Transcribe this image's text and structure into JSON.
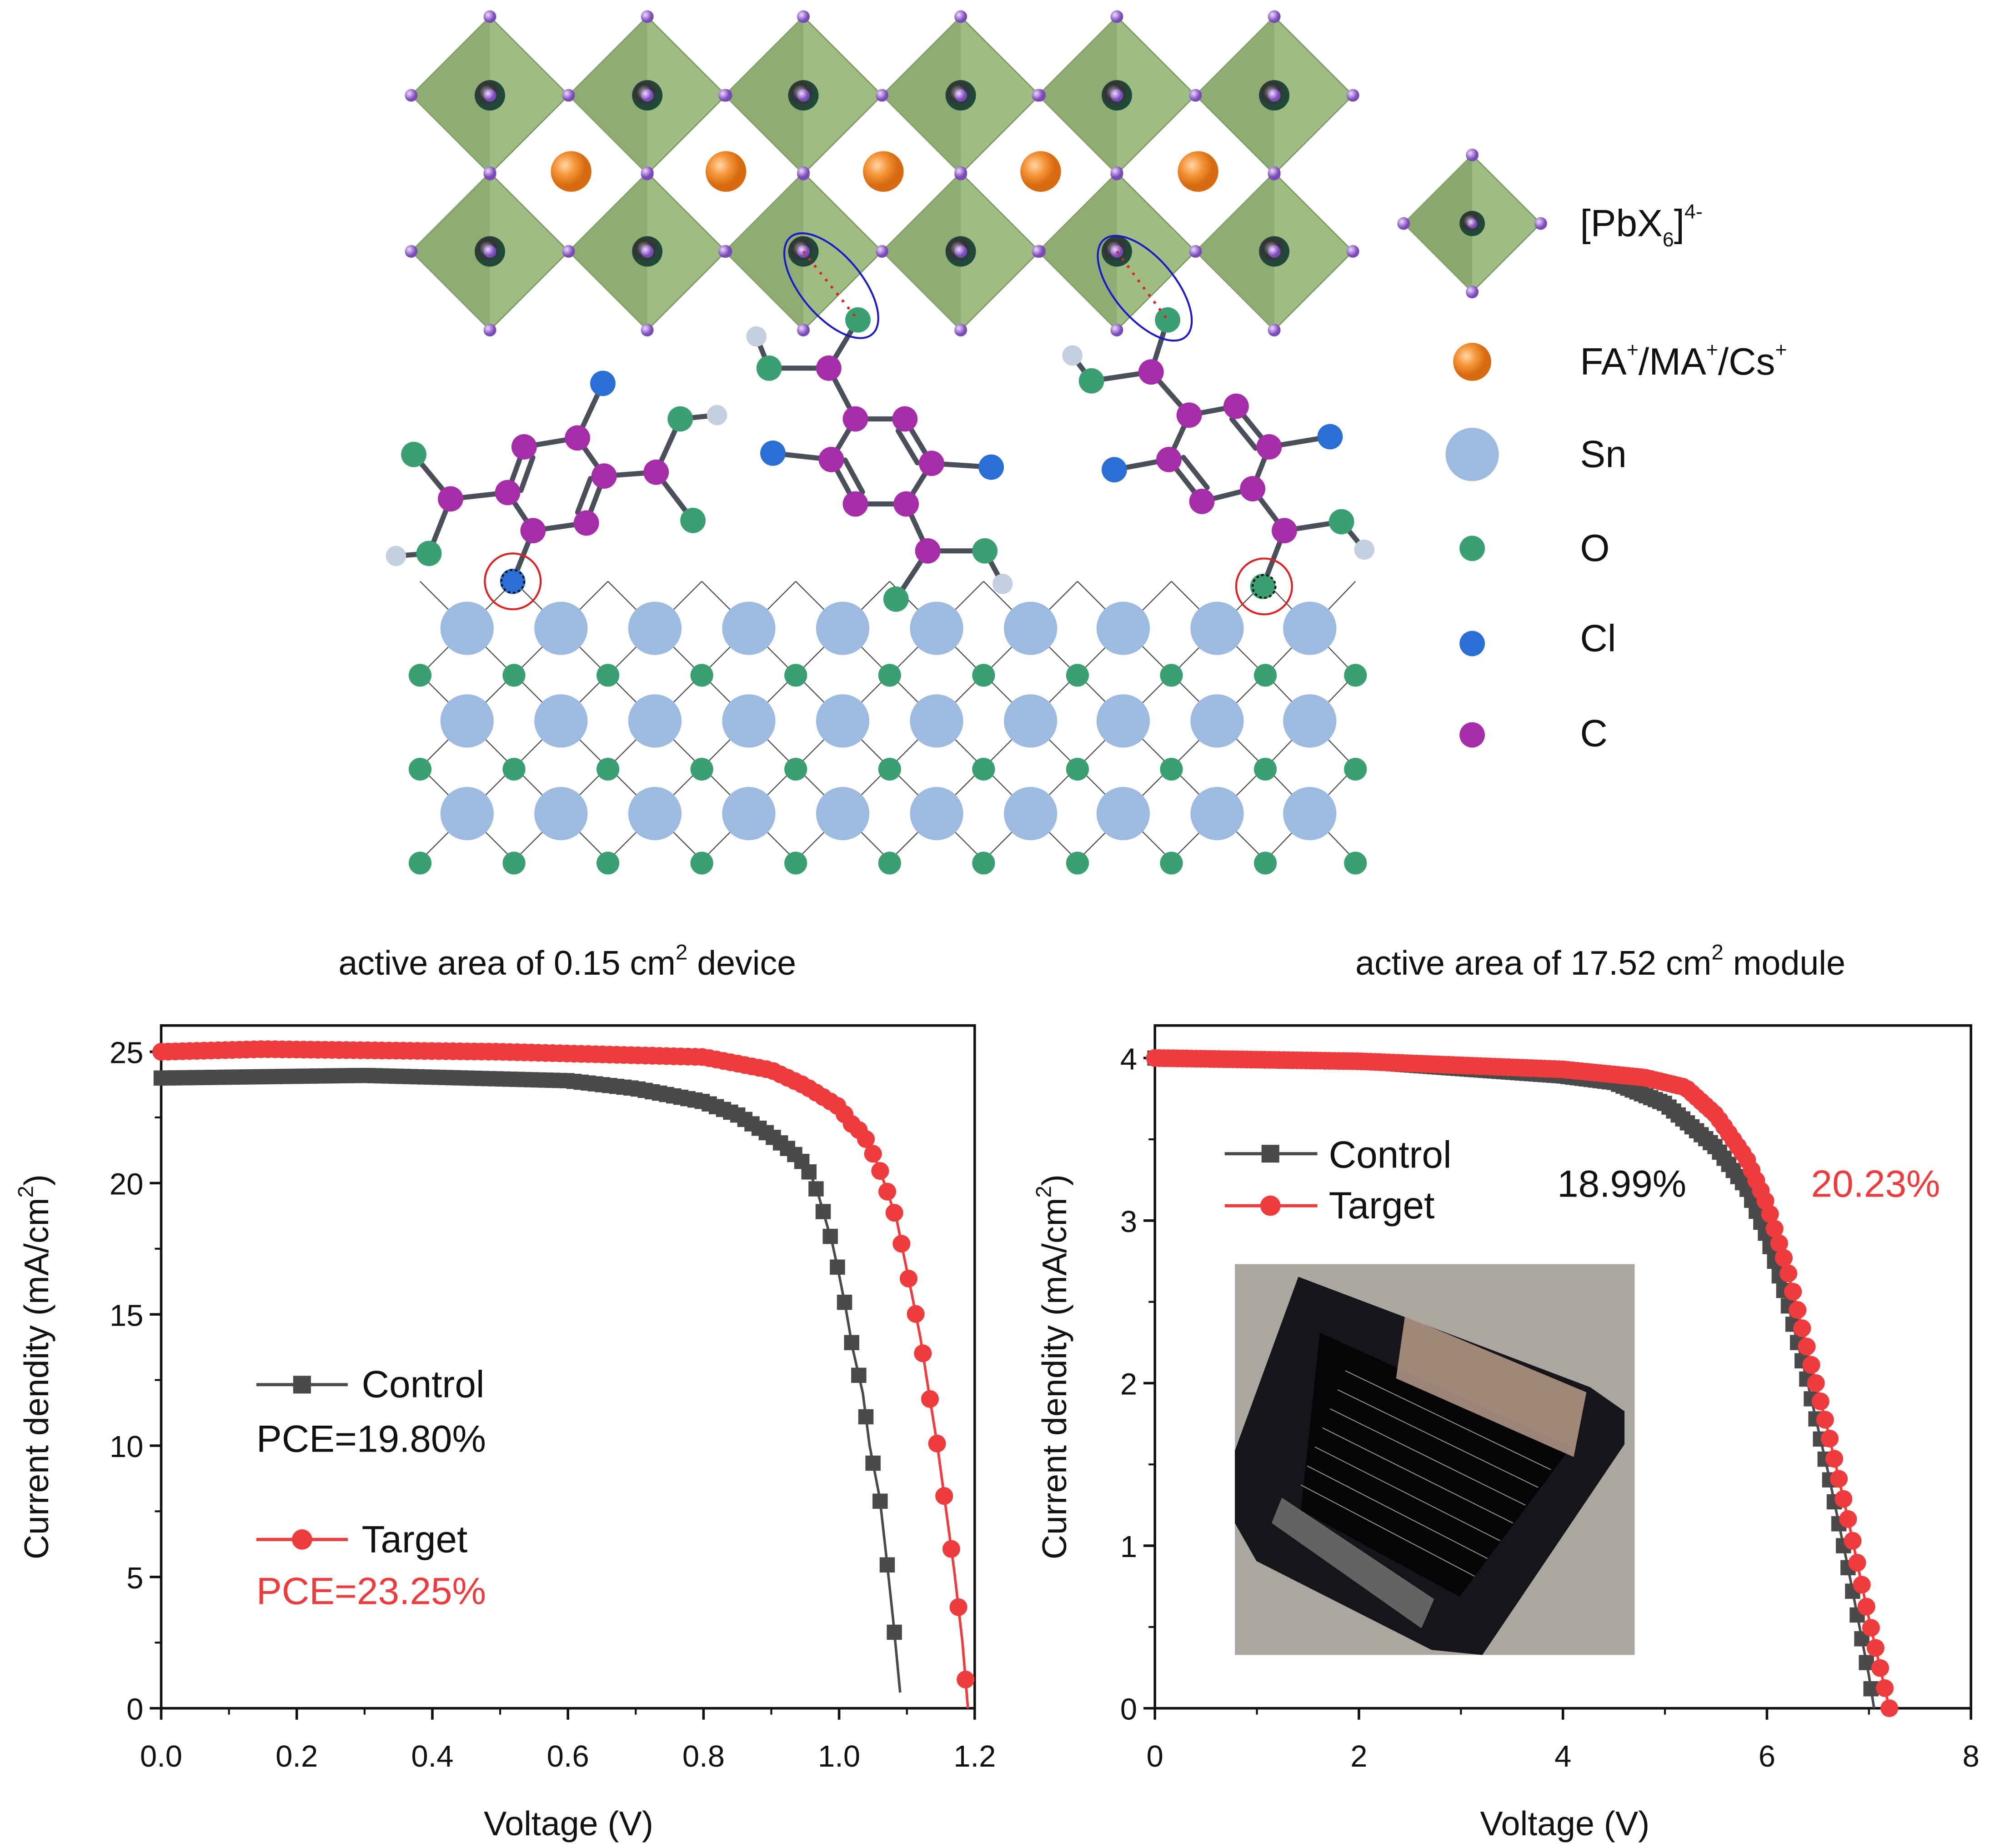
{
  "legend_structure": {
    "items": [
      {
        "parts": [
          "[PbX",
          "6",
          "]",
          "4-"
        ],
        "icon": "octahedron",
        "color": "#8fae6e"
      },
      {
        "parts": [
          "FA",
          "+",
          "/MA",
          "+",
          "/Cs",
          "+"
        ],
        "icon": "sphere",
        "color": "#f08a2c"
      },
      {
        "label": "Sn",
        "icon": "sphere",
        "color": "#9dbbe0"
      },
      {
        "label": "O",
        "icon": "sphere",
        "color": "#3aa071"
      },
      {
        "label": "Cl",
        "icon": "sphere",
        "color": "#2a6fd6"
      },
      {
        "label": "C",
        "icon": "sphere",
        "color": "#a52ea8"
      }
    ]
  },
  "chart_data": [
    {
      "type": "line",
      "title_parts": [
        "active area of 0.15 cm",
        "2",
        " device"
      ],
      "xlabel": "Voltage (V)",
      "ylabel_parts": [
        "Current dendity (mA/cm",
        "2",
        ")"
      ],
      "xlim": [
        0,
        1.2
      ],
      "ylim": [
        0,
        26
      ],
      "xticks": [
        "0.0",
        "0.2",
        "0.4",
        "0.6",
        "0.8",
        "1.0",
        "1.2"
      ],
      "yticks": [
        "0",
        "5",
        "10",
        "15",
        "20",
        "25"
      ],
      "grid": false,
      "legend_placement": "center-left",
      "series": [
        {
          "name": "Control",
          "marker": "square",
          "color": "#4a4a4a",
          "annotation": "PCE=19.80%",
          "x": [
            0,
            0.3,
            0.6,
            0.7,
            0.8,
            0.85,
            0.9,
            0.93,
            0.95,
            0.96,
            0.97,
            0.98,
            0.99,
            1.0,
            1.01,
            1.02,
            1.035,
            1.045,
            1.06,
            1.07,
            1.08,
            1.09
          ],
          "y": [
            24.0,
            24.1,
            23.9,
            23.6,
            23.1,
            22.6,
            21.8,
            21.2,
            20.7,
            20.2,
            19.5,
            18.6,
            17.7,
            16.5,
            15.2,
            13.7,
            12.0,
            10.0,
            8.0,
            5.7,
            3.3,
            0.6
          ]
        },
        {
          "name": "Target",
          "marker": "circle",
          "color": "#ef3b3b",
          "annotation": "PCE=23.25%",
          "x": [
            0,
            0.15,
            0.5,
            0.8,
            0.9,
            0.95,
            1.0,
            1.02,
            1.035,
            1.047,
            1.06,
            1.072,
            1.085,
            1.095,
            1.107,
            1.12,
            1.132,
            1.145,
            1.157,
            1.17,
            1.182,
            1.19
          ],
          "y": [
            25.0,
            25.1,
            25.0,
            24.8,
            24.3,
            23.7,
            22.9,
            22.2,
            21.9,
            21.3,
            20.5,
            19.6,
            18.6,
            17.3,
            15.8,
            14.1,
            12.1,
            10.0,
            7.7,
            5.2,
            2.5,
            0.0
          ]
        }
      ]
    },
    {
      "type": "line",
      "title_parts": [
        "active area of 17.52 cm",
        "2",
        " module"
      ],
      "xlabel": "Voltage (V)",
      "ylabel_parts": [
        "Current dendity (mA/cm",
        "2",
        ")"
      ],
      "xlim": [
        0,
        8
      ],
      "ylim": [
        0,
        4.2
      ],
      "xticks": [
        "0",
        "2",
        "4",
        "6",
        "8"
      ],
      "yticks": [
        "0",
        "1",
        "2",
        "3",
        "4"
      ],
      "grid": false,
      "legend_placement": "top-left",
      "series": [
        {
          "name": "Control",
          "marker": "square",
          "color": "#4a4a4a",
          "annotation": "18.99%",
          "x": [
            0,
            2,
            4,
            4.5,
            5,
            5.5,
            5.8,
            6.0,
            6.2,
            6.4,
            6.6,
            6.8,
            7.0,
            7.05
          ],
          "y": [
            4.0,
            3.98,
            3.89,
            3.85,
            3.72,
            3.45,
            3.2,
            2.9,
            2.5,
            2.0,
            1.45,
            0.85,
            0.2,
            0.0
          ]
        },
        {
          "name": "Target",
          "marker": "circle",
          "color": "#ef3b3b",
          "annotation": "20.23%",
          "x": [
            0,
            2,
            4,
            4.8,
            5.2,
            5.5,
            5.8,
            6.0,
            6.2,
            6.4,
            6.6,
            6.8,
            7.0,
            7.2
          ],
          "y": [
            4.0,
            3.98,
            3.93,
            3.88,
            3.82,
            3.65,
            3.38,
            3.1,
            2.7,
            2.2,
            1.7,
            1.15,
            0.55,
            0.0
          ]
        }
      ]
    }
  ]
}
